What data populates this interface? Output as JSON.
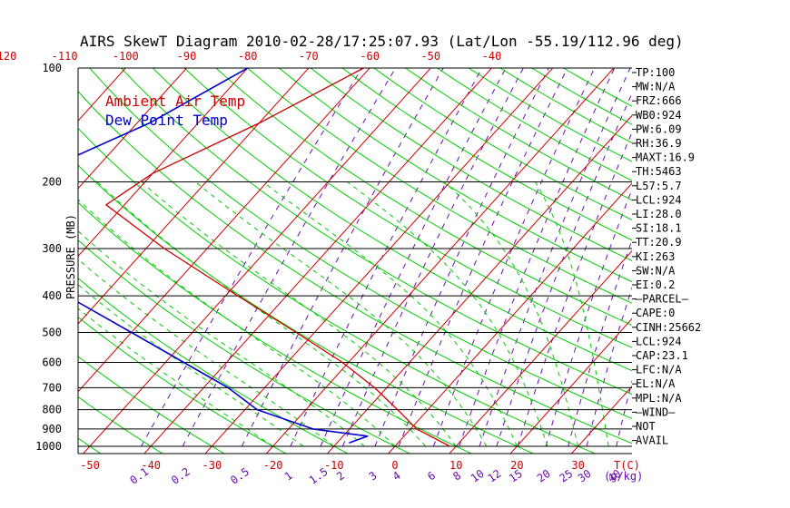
{
  "title": "AIRS SkewT Diagram 2010-02-28/17:25:07.93 (Lat/Lon -55.19/112.96 deg)",
  "chart_data": {
    "type": "line",
    "title": "AIRS SkewT Diagram 2010-02-28/17:25:07.93 (Lat/Lon -55.19/112.96 deg)",
    "ylabel": "PRESSURE (MB)",
    "y_scale": "log",
    "ylim": [
      1000,
      100
    ],
    "pressure_ticks": [
      100,
      200,
      300,
      400,
      500,
      600,
      700,
      800,
      900,
      1000
    ],
    "pressure_tick_labels": [
      "100",
      "200",
      "300",
      "400",
      "500",
      "600",
      "700",
      "800",
      "900",
      "1000"
    ],
    "top_temp_ticks": [
      -120,
      -110,
      -100,
      -90,
      -80,
      -70,
      -60,
      -50,
      -40
    ],
    "top_temp_labels": [
      "-120",
      "-110",
      "-100",
      "-90",
      "-80",
      "-70",
      "-60",
      "-50",
      "-40"
    ],
    "bottom_temp_ticks": [
      -50,
      -40,
      -30,
      -20,
      -10,
      0,
      10,
      20,
      30
    ],
    "bottom_temp_labels": [
      "-50",
      "-40",
      "-30",
      "-20",
      "-10",
      "0",
      "10",
      "20",
      "30"
    ],
    "bottom_axis_unit": "T(C)",
    "mixing_ratio_labels": [
      "0.1",
      "0.2",
      "0.5",
      "1",
      "1.5",
      "2",
      "3",
      "4",
      "6",
      "8",
      "10",
      "12",
      "15",
      "20",
      "25",
      "30",
      "40"
    ],
    "mixing_ratio_unit": "(g/kg)",
    "series": [
      {
        "name": "Ambient Air Temp",
        "color": "#cc0000",
        "points": [
          {
            "p": 100,
            "t": -61
          },
          {
            "p": 140,
            "t": -70
          },
          {
            "p": 190,
            "t": -80
          },
          {
            "p": 230,
            "t": -83
          },
          {
            "p": 300,
            "t": -67
          },
          {
            "p": 400,
            "t": -48
          },
          {
            "p": 500,
            "t": -33
          },
          {
            "p": 600,
            "t": -21
          },
          {
            "p": 700,
            "t": -12
          },
          {
            "p": 800,
            "t": -5
          },
          {
            "p": 900,
            "t": 1
          },
          {
            "p": 1000,
            "t": 9
          }
        ]
      },
      {
        "name": "Dew Point Temp",
        "color": "#0000cc",
        "points": [
          {
            "p": 100,
            "t": -80
          },
          {
            "p": 140,
            "t": -88
          },
          {
            "p": 170,
            "t": -95
          },
          {
            "p": 200,
            "t": -97
          },
          {
            "p": 250,
            "t": -96
          },
          {
            "p": 300,
            "t": -90
          },
          {
            "p": 400,
            "t": -76
          },
          {
            "p": 500,
            "t": -60
          },
          {
            "p": 600,
            "t": -47
          },
          {
            "p": 700,
            "t": -36
          },
          {
            "p": 800,
            "t": -28
          },
          {
            "p": 900,
            "t": -16
          },
          {
            "p": 940,
            "t": -6
          },
          {
            "p": 980,
            "t": -8
          }
        ]
      }
    ],
    "indices": [
      "TP:100",
      "MW:N/A",
      "FRZ:666",
      "WB0:924",
      "PW:6.09",
      "RH:36.9",
      "MAXT:16.9",
      "TH:5463",
      "L57:5.7",
      "LCL:924",
      "LI:28.0",
      "SI:18.1",
      "TT:20.9",
      "KI:263",
      "SW:N/A",
      "EI:0.2",
      "—PARCEL—",
      "CAPE:0",
      "CINH:25662",
      "LCL:924",
      "CAP:23.1",
      "LFC:N/A",
      "EL:N/A",
      "MPL:N/A",
      "—WIND—",
      "NOT",
      "AVAIL"
    ],
    "colors": {
      "isotherm": "#cc0000",
      "dry_adiabat": "#00cc00",
      "moist_adiabat": "#00cc00",
      "mixing_ratio": "#6a0dad",
      "isobar": "#000000",
      "top_axis": "#cc0000",
      "bottom_axis": "#cc0000",
      "mixing_axis": "#6a0dad"
    }
  }
}
